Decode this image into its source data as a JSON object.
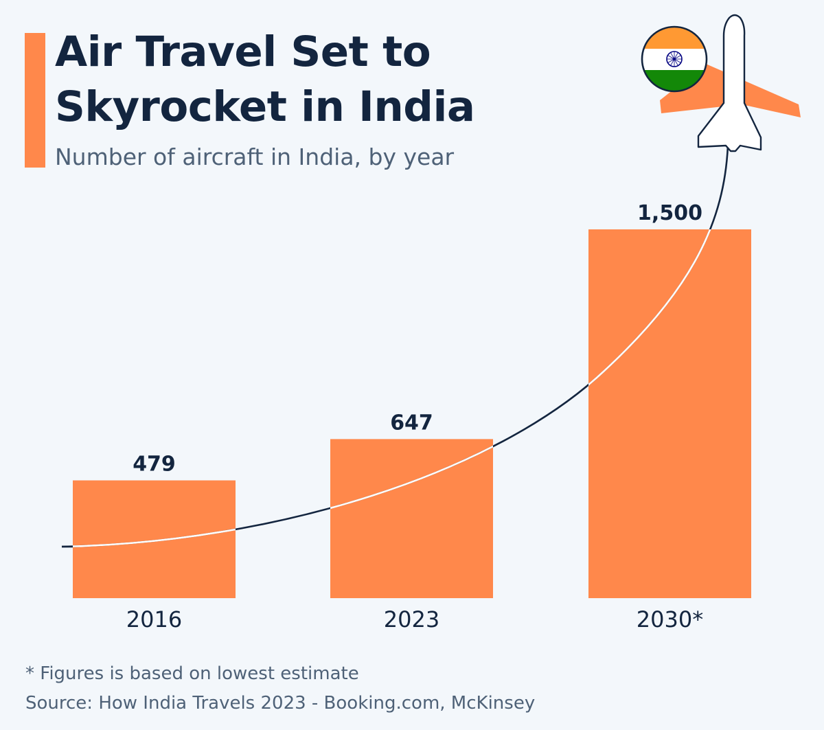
{
  "header": {
    "title_line1": "Air Travel Set to",
    "title_line2": "Skyrocket in India",
    "subtitle": "Number of aircraft in India, by year"
  },
  "footer": {
    "note": "* Figures is based on lowest estimate",
    "source": "Source: How India Travels 2023 - Booking.com, McKinsey"
  },
  "colors": {
    "accent": "#ff884b",
    "bar": "#ff884b",
    "text_dark": "#13253f",
    "text_muted": "#4e6177",
    "curve": "#13253f",
    "curve_on_bar": "#ffffff",
    "background": "#f3f7fb"
  },
  "icons": [
    "india-flag-icon",
    "airplane-icon"
  ],
  "chart_data": {
    "type": "bar",
    "title": "Air Travel Set to Skyrocket in India",
    "subtitle": "Number of aircraft in India, by year",
    "categories": [
      "2016",
      "2023",
      "2030*"
    ],
    "values": [
      479,
      647,
      1500
    ],
    "value_labels": [
      "479",
      "647",
      "1,500"
    ],
    "xlabel": "",
    "ylabel": "",
    "ylim": [
      0,
      1500
    ],
    "grid": false,
    "legend": "none",
    "annotations": [
      "Upward growth curve ending in airplane with Indian flag"
    ]
  }
}
